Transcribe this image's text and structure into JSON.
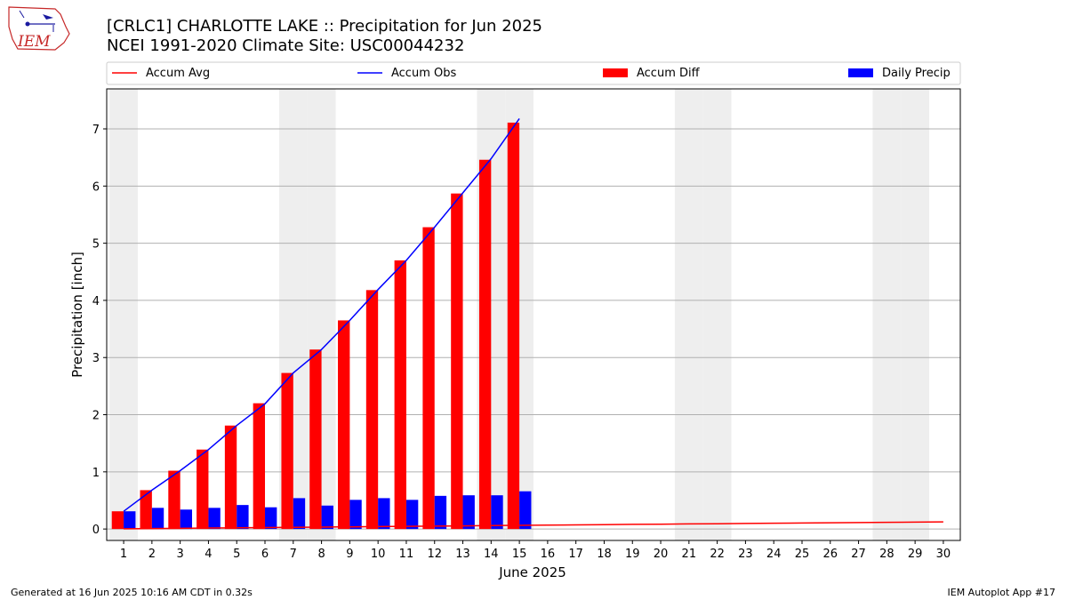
{
  "logo": {
    "text": "IEM"
  },
  "footer": {
    "generated": "Generated at 16 Jun 2025 10:16 AM CDT in 0.32s",
    "app": "IEM Autoplot App #17"
  },
  "chart_data": {
    "type": "bar",
    "title": "[CRLC1] CHARLOTTE LAKE :: Precipitation for Jun 2025",
    "subtitle": "NCEI 1991-2020 Climate Site: USC00044232",
    "xlabel": "June 2025",
    "ylabel": "Precipitation [inch]",
    "ylim": [
      -0.2,
      7.7
    ],
    "yticks": [
      0,
      1,
      2,
      3,
      4,
      5,
      6,
      7
    ],
    "x": [
      1,
      2,
      3,
      4,
      5,
      6,
      7,
      8,
      9,
      10,
      11,
      12,
      13,
      14,
      15,
      16,
      17,
      18,
      19,
      20,
      21,
      22,
      23,
      24,
      25,
      26,
      27,
      28,
      29,
      30
    ],
    "weekend_days": [
      1,
      7,
      8,
      14,
      15,
      21,
      22,
      28,
      29
    ],
    "grid": "horizontal",
    "legend_position": "top",
    "legend": [
      "Accum Avg",
      "Accum Obs",
      "Accum Diff",
      "Daily Precip"
    ],
    "colors": {
      "accum_avg": "#ff0000",
      "accum_obs": "#0000ff",
      "accum_diff": "#ff0000",
      "daily_precip": "#0000ff",
      "weekend_band": "#eeeeee"
    },
    "series": [
      {
        "name": "Accum Avg",
        "kind": "line",
        "values": [
          0.004,
          0.008,
          0.012,
          0.017,
          0.021,
          0.025,
          0.03,
          0.034,
          0.038,
          0.042,
          0.047,
          0.051,
          0.055,
          0.06,
          0.064,
          0.068,
          0.072,
          0.077,
          0.081,
          0.085,
          0.089,
          0.093,
          0.097,
          0.101,
          0.105,
          0.109,
          0.113,
          0.117,
          0.121,
          0.125
        ]
      },
      {
        "name": "Accum Obs",
        "kind": "line",
        "values": [
          0.31,
          0.68,
          1.02,
          1.39,
          1.81,
          2.19,
          2.73,
          3.14,
          3.65,
          4.19,
          4.7,
          5.28,
          5.88,
          6.48,
          7.18,
          null,
          null,
          null,
          null,
          null,
          null,
          null,
          null,
          null,
          null,
          null,
          null,
          null,
          null,
          null
        ]
      },
      {
        "name": "Accum Diff",
        "kind": "bar",
        "values": [
          0.31,
          0.68,
          1.02,
          1.39,
          1.81,
          2.2,
          2.73,
          3.14,
          3.65,
          4.18,
          4.7,
          5.28,
          5.87,
          6.46,
          7.11,
          null,
          null,
          null,
          null,
          null,
          null,
          null,
          null,
          null,
          null,
          null,
          null,
          null,
          null,
          null
        ]
      },
      {
        "name": "Daily Precip",
        "kind": "bar",
        "values": [
          0.31,
          0.37,
          0.34,
          0.37,
          0.42,
          0.38,
          0.54,
          0.41,
          0.51,
          0.54,
          0.51,
          0.58,
          0.59,
          0.59,
          0.66,
          null,
          null,
          null,
          null,
          null,
          null,
          null,
          null,
          null,
          null,
          null,
          null,
          null,
          null,
          null
        ]
      }
    ]
  }
}
